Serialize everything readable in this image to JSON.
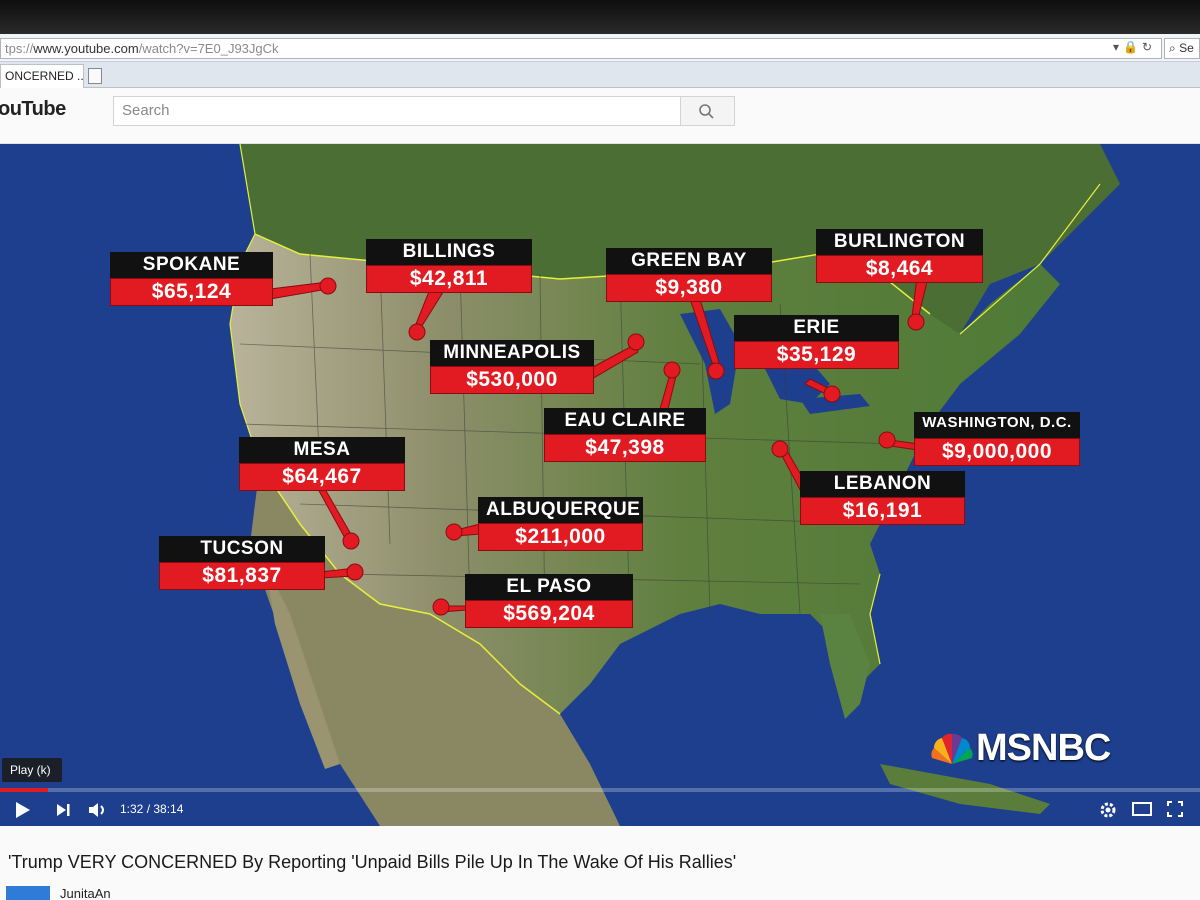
{
  "browser": {
    "url_prefix": "tps://",
    "url_host": "www.youtube.com",
    "url_rest": "/watch?v=7E0_J93JgCk",
    "url_right": "Se",
    "tab_label": "ONCERNED ..."
  },
  "youtube": {
    "logo": "ouTube",
    "search_placeholder": "Search"
  },
  "map": {
    "cities": [
      {
        "name": "SPOKANE",
        "amount": "$65,124"
      },
      {
        "name": "BILLINGS",
        "amount": "$42,811"
      },
      {
        "name": "GREEN BAY",
        "amount": "$9,380"
      },
      {
        "name": "BURLINGTON",
        "amount": "$8,464"
      },
      {
        "name": "MINNEAPOLIS",
        "amount": "$530,000"
      },
      {
        "name": "ERIE",
        "amount": "$35,129"
      },
      {
        "name": "EAU CLAIRE",
        "amount": "$47,398"
      },
      {
        "name": "WASHINGTON, D.C.",
        "amount": "$9,000,000"
      },
      {
        "name": "MESA",
        "amount": "$64,467"
      },
      {
        "name": "LEBANON",
        "amount": "$16,191"
      },
      {
        "name": "ALBUQUERQUE",
        "amount": "$211,000"
      },
      {
        "name": "TUCSON",
        "amount": "$81,837"
      },
      {
        "name": "EL PASO",
        "amount": "$569,204"
      }
    ],
    "network_logo": "MSNBC"
  },
  "player": {
    "tooltip": "Play (k)",
    "time": "1:32 / 38:14",
    "progress_fraction": 0.04,
    "icons": [
      "play-icon",
      "next-icon",
      "volume-icon",
      "settings-icon",
      "theater-icon",
      "fullscreen-icon"
    ]
  },
  "video": {
    "title": "'Trump VERY CONCERNED By Reporting 'Unpaid Bills Pile Up In The Wake Of His Rallies'",
    "channel": "JunitaAn"
  },
  "colors": {
    "label_red": "#e21b22",
    "label_black": "#111111",
    "ocean": "#1d3f8e",
    "land": "#5a7a3e",
    "border_yellow": "#e6f03a"
  }
}
